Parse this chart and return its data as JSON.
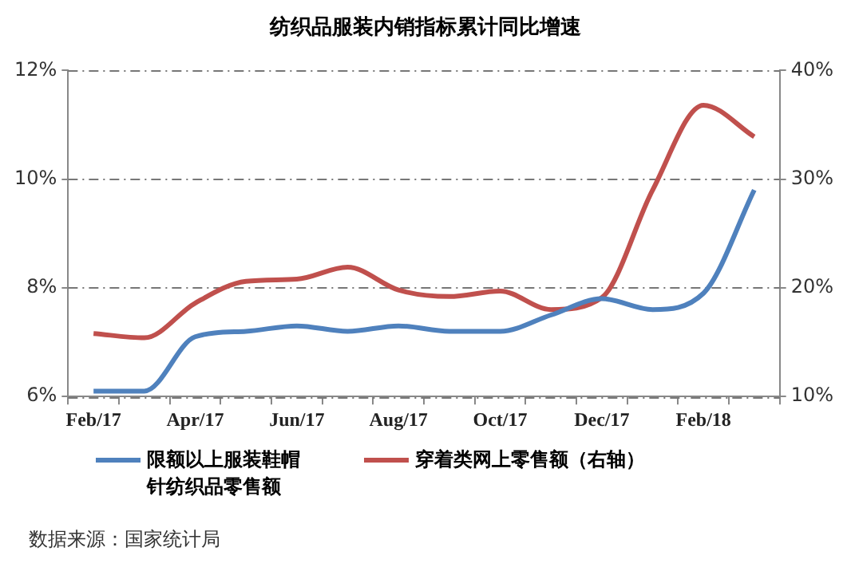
{
  "chart_data": {
    "type": "line",
    "title": "纺织品服装内销指标累计同比增速",
    "categories": [
      "Feb/17",
      null,
      "Apr/17",
      null,
      "Jun/17",
      null,
      "Aug/17",
      null,
      "Oct/17",
      null,
      "Dec/17",
      null,
      "Feb/18",
      null
    ],
    "series": [
      {
        "name": "限额以上服装鞋帽针纺织品零售额",
        "color": "#4f81bd",
        "values": [
          6.1,
          6.1,
          7.1,
          7.2,
          7.3,
          7.2,
          7.3,
          7.2,
          7.2,
          7.5,
          7.8,
          7.6,
          7.9,
          9.8
        ]
      },
      {
        "name": "穿着类网上零售额（右轴）",
        "color": "#c0504d",
        "axis": "y2",
        "values": [
          15.8,
          15.4,
          18.6,
          20.6,
          20.8,
          21.9,
          19.8,
          19.2,
          19.7,
          18.0,
          19.1,
          29.0,
          36.8,
          33.9
        ]
      }
    ],
    "ylim": [
      6,
      12
    ],
    "yticks": [
      {
        "value": 6,
        "label": "6%"
      },
      {
        "value": 8,
        "label": "8%"
      },
      {
        "value": 10,
        "label": "10%"
      },
      {
        "value": 12,
        "label": "12%"
      }
    ],
    "y2lim": [
      10,
      40
    ],
    "y2ticks": [
      {
        "value": 10,
        "label": "10%"
      },
      {
        "value": 20,
        "label": "20%"
      },
      {
        "value": 30,
        "label": "30%"
      },
      {
        "value": 40,
        "label": "40%"
      }
    ],
    "grid": "y",
    "legend": "bottom",
    "marker": "none",
    "line_style": "solid",
    "annotations": [
      "数据来源：国家统计局"
    ]
  }
}
